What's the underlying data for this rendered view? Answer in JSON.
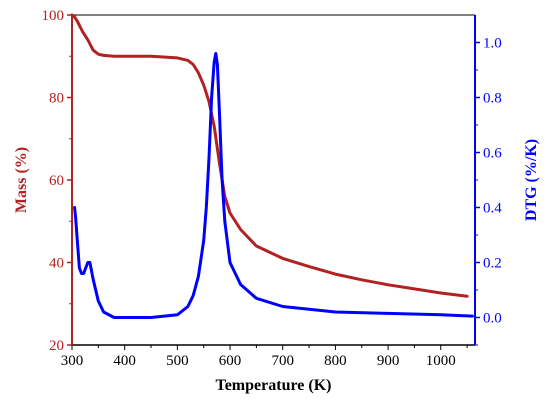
{
  "chart_data": {
    "type": "line",
    "xlabel": "Temperature (K)",
    "ylabel_left": "Mass (%)",
    "ylabel_right": "DTG (%/K)",
    "xlim": [
      300,
      1065
    ],
    "ylim_left": [
      20,
      100
    ],
    "ylim_right": [
      -0.1,
      1.1
    ],
    "xticks": [
      "300",
      "400",
      "500",
      "600",
      "700",
      "800",
      "900",
      "1000"
    ],
    "yticks_left": [
      "20",
      "40",
      "60",
      "80",
      "100"
    ],
    "yticks_right": [
      "0.0",
      "0.2",
      "0.4",
      "0.6",
      "0.8",
      "1.0"
    ],
    "grid": false,
    "colors": {
      "mass": "#b22222",
      "dtg": "#0000ff",
      "axis": "#000000"
    },
    "series": [
      {
        "axis": "left",
        "x": [
          300,
          305,
          310,
          320,
          330,
          340,
          350,
          360,
          380,
          400,
          450,
          500,
          520,
          530,
          540,
          550,
          560,
          570,
          580,
          590,
          600,
          620,
          650,
          700,
          750,
          800,
          850,
          900,
          950,
          1000,
          1050
        ],
        "values": [
          100,
          99.5,
          98.5,
          96,
          94,
          91.5,
          90.5,
          90.2,
          90,
          90,
          90,
          89.6,
          89,
          88,
          86,
          83,
          79,
          73,
          64,
          56,
          52,
          48,
          44,
          41,
          39,
          37.2,
          35.8,
          34.6,
          33.6,
          32.6,
          31.8
        ]
      },
      {
        "axis": "right",
        "x": [
          305,
          307,
          310,
          314,
          318,
          322,
          326,
          330,
          334,
          340,
          350,
          360,
          380,
          400,
          450,
          500,
          520,
          530,
          540,
          550,
          555,
          560,
          565,
          570,
          573,
          576,
          580,
          585,
          590,
          600,
          620,
          650,
          700,
          750,
          800,
          900,
          1000,
          1060
        ],
        "values": [
          0.4,
          0.36,
          0.28,
          0.18,
          0.16,
          0.16,
          0.18,
          0.2,
          0.2,
          0.14,
          0.06,
          0.02,
          0.0,
          0.0,
          0.0,
          0.01,
          0.04,
          0.08,
          0.15,
          0.28,
          0.4,
          0.58,
          0.8,
          0.93,
          0.96,
          0.92,
          0.74,
          0.5,
          0.35,
          0.2,
          0.12,
          0.07,
          0.04,
          0.03,
          0.02,
          0.015,
          0.01,
          0.005
        ]
      }
    ]
  }
}
